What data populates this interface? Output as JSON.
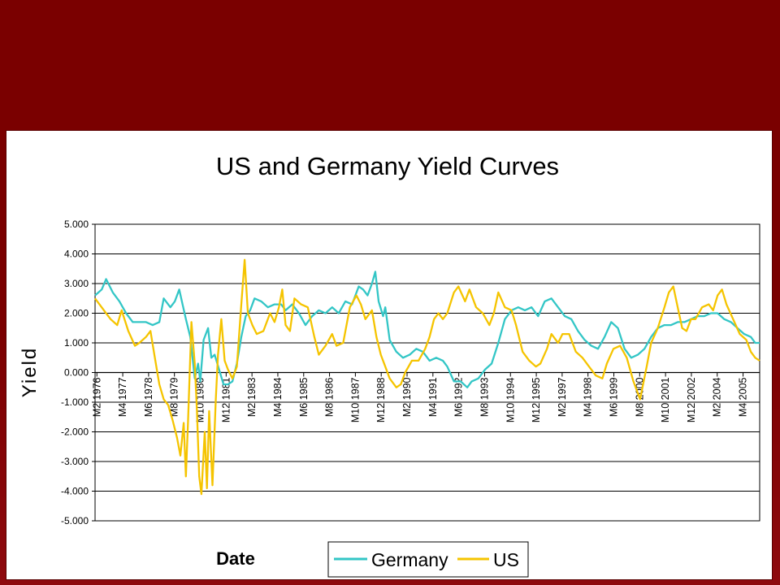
{
  "chart_data": {
    "type": "line",
    "title": "US and Germany Yield Curves",
    "xlabel": "Date",
    "ylabel": "Yield",
    "ylim": [
      -5,
      5
    ],
    "yticks": [
      "5.000",
      "4.000",
      "3.000",
      "2.000",
      "1.000",
      "0.000",
      "-1.000",
      "-2.000",
      "-3.000",
      "-4.000",
      "-5.000"
    ],
    "ytick_values": [
      5,
      4,
      3,
      2,
      1,
      0,
      -1,
      -2,
      -3,
      -4,
      -5
    ],
    "grid": true,
    "legend_position": "bottom-center",
    "x_ticks": [
      "M2 1976",
      "M4 1977",
      "M6 1978",
      "M8 1979",
      "M10 1980",
      "M12 1981",
      "M2 1983",
      "M4 1984",
      "M6 1985",
      "M8 1986",
      "M10 1987",
      "M12 1988",
      "M2 1990",
      "M4 1991",
      "M6 1992",
      "M8 1993",
      "M10 1994",
      "M12 1995",
      "M2 1997",
      "M4 1998",
      "M6 1999",
      "M8 2000",
      "M10 2001",
      "M12 2002",
      "M2 2004",
      "M4 2005"
    ],
    "x_tick_years": [
      1976.083,
      1977.25,
      1978.417,
      1979.583,
      1980.75,
      1981.917,
      1983.083,
      1984.25,
      1985.417,
      1986.583,
      1987.75,
      1988.917,
      1990.083,
      1991.25,
      1992.417,
      1993.583,
      1994.75,
      1995.917,
      1997.083,
      1998.25,
      1999.417,
      2000.583,
      2001.75,
      2002.917,
      2004.083,
      2005.25
    ],
    "xlim": [
      1976.0,
      2006.0
    ],
    "series": [
      {
        "name": "Germany",
        "color": "#33c6c6",
        "points": [
          [
            1976.0,
            2.6
          ],
          [
            1976.3,
            2.8
          ],
          [
            1976.5,
            3.15
          ],
          [
            1976.8,
            2.7
          ],
          [
            1977.1,
            2.4
          ],
          [
            1977.4,
            2.0
          ],
          [
            1977.7,
            1.7
          ],
          [
            1978.0,
            1.7
          ],
          [
            1978.3,
            1.7
          ],
          [
            1978.6,
            1.6
          ],
          [
            1978.9,
            1.7
          ],
          [
            1979.1,
            2.5
          ],
          [
            1979.4,
            2.2
          ],
          [
            1979.6,
            2.4
          ],
          [
            1979.8,
            2.8
          ],
          [
            1979.95,
            2.3
          ],
          [
            1980.1,
            1.8
          ],
          [
            1980.3,
            1.2
          ],
          [
            1980.5,
            -0.2
          ],
          [
            1980.65,
            0.3
          ],
          [
            1980.75,
            -0.3
          ],
          [
            1980.9,
            1.1
          ],
          [
            1981.1,
            1.5
          ],
          [
            1981.25,
            0.5
          ],
          [
            1981.4,
            0.6
          ],
          [
            1981.6,
            0.1
          ],
          [
            1981.8,
            -0.4
          ],
          [
            1982.0,
            -0.4
          ],
          [
            1982.2,
            -0.3
          ],
          [
            1982.4,
            0.3
          ],
          [
            1982.6,
            1.2
          ],
          [
            1982.8,
            1.9
          ],
          [
            1983.0,
            2.1
          ],
          [
            1983.2,
            2.5
          ],
          [
            1983.5,
            2.4
          ],
          [
            1983.8,
            2.2
          ],
          [
            1984.1,
            2.3
          ],
          [
            1984.4,
            2.3
          ],
          [
            1984.6,
            2.1
          ],
          [
            1984.9,
            2.3
          ],
          [
            1985.2,
            2.0
          ],
          [
            1985.5,
            1.6
          ],
          [
            1985.8,
            1.9
          ],
          [
            1986.1,
            2.1
          ],
          [
            1986.4,
            2.0
          ],
          [
            1986.7,
            2.2
          ],
          [
            1987.0,
            2.0
          ],
          [
            1987.3,
            2.4
          ],
          [
            1987.6,
            2.3
          ],
          [
            1987.9,
            2.9
          ],
          [
            1988.1,
            2.8
          ],
          [
            1988.3,
            2.6
          ],
          [
            1988.5,
            3.0
          ],
          [
            1988.65,
            3.4
          ],
          [
            1988.8,
            2.4
          ],
          [
            1989.0,
            1.9
          ],
          [
            1989.1,
            2.2
          ],
          [
            1989.3,
            1.1
          ],
          [
            1989.6,
            0.7
          ],
          [
            1989.9,
            0.5
          ],
          [
            1990.2,
            0.6
          ],
          [
            1990.5,
            0.8
          ],
          [
            1990.8,
            0.7
          ],
          [
            1991.1,
            0.4
          ],
          [
            1991.4,
            0.5
          ],
          [
            1991.7,
            0.4
          ],
          [
            1991.9,
            0.2
          ],
          [
            1992.2,
            -0.3
          ],
          [
            1992.5,
            -0.3
          ],
          [
            1992.8,
            -0.5
          ],
          [
            1993.0,
            -0.3
          ],
          [
            1993.3,
            -0.2
          ],
          [
            1993.6,
            0.1
          ],
          [
            1993.9,
            0.3
          ],
          [
            1994.2,
            1.0
          ],
          [
            1994.5,
            1.8
          ],
          [
            1994.8,
            2.1
          ],
          [
            1995.1,
            2.2
          ],
          [
            1995.4,
            2.1
          ],
          [
            1995.7,
            2.2
          ],
          [
            1996.0,
            1.9
          ],
          [
            1996.3,
            2.4
          ],
          [
            1996.6,
            2.5
          ],
          [
            1996.9,
            2.2
          ],
          [
            1997.2,
            1.9
          ],
          [
            1997.5,
            1.8
          ],
          [
            1997.8,
            1.4
          ],
          [
            1998.1,
            1.1
          ],
          [
            1998.4,
            0.9
          ],
          [
            1998.7,
            0.8
          ],
          [
            1999.0,
            1.2
          ],
          [
            1999.3,
            1.7
          ],
          [
            1999.6,
            1.5
          ],
          [
            1999.9,
            0.8
          ],
          [
            2000.2,
            0.5
          ],
          [
            2000.5,
            0.6
          ],
          [
            2000.8,
            0.8
          ],
          [
            2001.1,
            1.2
          ],
          [
            2001.4,
            1.5
          ],
          [
            2001.7,
            1.6
          ],
          [
            2002.0,
            1.6
          ],
          [
            2002.3,
            1.7
          ],
          [
            2002.6,
            1.7
          ],
          [
            2002.9,
            1.8
          ],
          [
            2003.2,
            1.9
          ],
          [
            2003.5,
            1.9
          ],
          [
            2003.8,
            2.0
          ],
          [
            2004.1,
            2.0
          ],
          [
            2004.4,
            1.8
          ],
          [
            2004.7,
            1.7
          ],
          [
            2005.0,
            1.5
          ],
          [
            2005.3,
            1.3
          ],
          [
            2005.6,
            1.2
          ],
          [
            2005.8,
            1.0
          ],
          [
            2006.0,
            1.0
          ]
        ]
      },
      {
        "name": "US",
        "color": "#f5c400",
        "points": [
          [
            1976.0,
            2.5
          ],
          [
            1976.4,
            2.1
          ],
          [
            1976.7,
            1.8
          ],
          [
            1977.0,
            1.6
          ],
          [
            1977.2,
            2.1
          ],
          [
            1977.5,
            1.4
          ],
          [
            1977.8,
            0.9
          ],
          [
            1978.0,
            1.0
          ],
          [
            1978.3,
            1.2
          ],
          [
            1978.5,
            1.4
          ],
          [
            1978.7,
            0.5
          ],
          [
            1978.9,
            -0.4
          ],
          [
            1979.1,
            -0.9
          ],
          [
            1979.3,
            -1.1
          ],
          [
            1979.5,
            -1.6
          ],
          [
            1979.7,
            -2.2
          ],
          [
            1979.85,
            -2.8
          ],
          [
            1980.0,
            -1.7
          ],
          [
            1980.1,
            -3.5
          ],
          [
            1980.2,
            -1.6
          ],
          [
            1980.35,
            1.7
          ],
          [
            1980.5,
            0.3
          ],
          [
            1980.6,
            -1.3
          ],
          [
            1980.7,
            -3.5
          ],
          [
            1980.8,
            -4.1
          ],
          [
            1980.95,
            -2.0
          ],
          [
            1981.05,
            -3.9
          ],
          [
            1981.15,
            -1.3
          ],
          [
            1981.3,
            -3.8
          ],
          [
            1981.45,
            -0.9
          ],
          [
            1981.55,
            0.6
          ],
          [
            1981.7,
            1.8
          ],
          [
            1981.85,
            0.4
          ],
          [
            1982.0,
            0.1
          ],
          [
            1982.2,
            -0.2
          ],
          [
            1982.4,
            0.2
          ],
          [
            1982.6,
            2.3
          ],
          [
            1982.75,
            3.8
          ],
          [
            1982.9,
            2.0
          ],
          [
            1983.1,
            1.6
          ],
          [
            1983.3,
            1.3
          ],
          [
            1983.6,
            1.4
          ],
          [
            1983.9,
            2.0
          ],
          [
            1984.1,
            1.7
          ],
          [
            1984.3,
            2.2
          ],
          [
            1984.45,
            2.8
          ],
          [
            1984.6,
            1.6
          ],
          [
            1984.8,
            1.4
          ],
          [
            1985.0,
            2.5
          ],
          [
            1985.3,
            2.3
          ],
          [
            1985.6,
            2.2
          ],
          [
            1985.9,
            1.2
          ],
          [
            1986.1,
            0.6
          ],
          [
            1986.4,
            0.9
          ],
          [
            1986.7,
            1.3
          ],
          [
            1986.9,
            0.9
          ],
          [
            1987.2,
            1.0
          ],
          [
            1987.5,
            2.2
          ],
          [
            1987.8,
            2.6
          ],
          [
            1988.0,
            2.3
          ],
          [
            1988.2,
            1.8
          ],
          [
            1988.5,
            2.1
          ],
          [
            1988.7,
            1.2
          ],
          [
            1988.9,
            0.6
          ],
          [
            1989.1,
            0.2
          ],
          [
            1989.3,
            -0.2
          ],
          [
            1989.6,
            -0.5
          ],
          [
            1989.8,
            -0.4
          ],
          [
            1990.0,
            0.0
          ],
          [
            1990.3,
            0.4
          ],
          [
            1990.6,
            0.4
          ],
          [
            1990.9,
            0.8
          ],
          [
            1991.1,
            1.2
          ],
          [
            1991.3,
            1.8
          ],
          [
            1991.5,
            2.0
          ],
          [
            1991.7,
            1.8
          ],
          [
            1991.9,
            2.0
          ],
          [
            1992.2,
            2.7
          ],
          [
            1992.4,
            2.9
          ],
          [
            1992.7,
            2.4
          ],
          [
            1992.9,
            2.8
          ],
          [
            1993.2,
            2.2
          ],
          [
            1993.5,
            2.0
          ],
          [
            1993.8,
            1.6
          ],
          [
            1994.0,
            2.0
          ],
          [
            1994.2,
            2.7
          ],
          [
            1994.5,
            2.2
          ],
          [
            1994.8,
            2.1
          ],
          [
            1995.0,
            1.6
          ],
          [
            1995.3,
            0.7
          ],
          [
            1995.6,
            0.4
          ],
          [
            1995.9,
            0.2
          ],
          [
            1996.1,
            0.3
          ],
          [
            1996.4,
            0.8
          ],
          [
            1996.6,
            1.3
          ],
          [
            1996.9,
            1.0
          ],
          [
            1997.1,
            1.3
          ],
          [
            1997.4,
            1.3
          ],
          [
            1997.7,
            0.7
          ],
          [
            1998.0,
            0.5
          ],
          [
            1998.3,
            0.2
          ],
          [
            1998.6,
            -0.1
          ],
          [
            1998.9,
            -0.2
          ],
          [
            1999.1,
            0.3
          ],
          [
            1999.4,
            0.8
          ],
          [
            1999.7,
            0.9
          ],
          [
            2000.0,
            0.5
          ],
          [
            2000.3,
            -0.3
          ],
          [
            2000.6,
            -0.9
          ],
          [
            2000.9,
            0.2
          ],
          [
            2001.1,
            1.0
          ],
          [
            2001.4,
            1.5
          ],
          [
            2001.7,
            2.2
          ],
          [
            2001.9,
            2.7
          ],
          [
            2002.1,
            2.9
          ],
          [
            2002.3,
            2.2
          ],
          [
            2002.5,
            1.5
          ],
          [
            2002.7,
            1.4
          ],
          [
            2002.9,
            1.8
          ],
          [
            2003.1,
            1.8
          ],
          [
            2003.4,
            2.2
          ],
          [
            2003.7,
            2.3
          ],
          [
            2003.9,
            2.1
          ],
          [
            2004.1,
            2.6
          ],
          [
            2004.3,
            2.8
          ],
          [
            2004.5,
            2.3
          ],
          [
            2004.8,
            1.8
          ],
          [
            2005.1,
            1.3
          ],
          [
            2005.4,
            1.1
          ],
          [
            2005.6,
            0.7
          ],
          [
            2005.8,
            0.5
          ],
          [
            2006.0,
            0.4
          ]
        ]
      }
    ]
  }
}
